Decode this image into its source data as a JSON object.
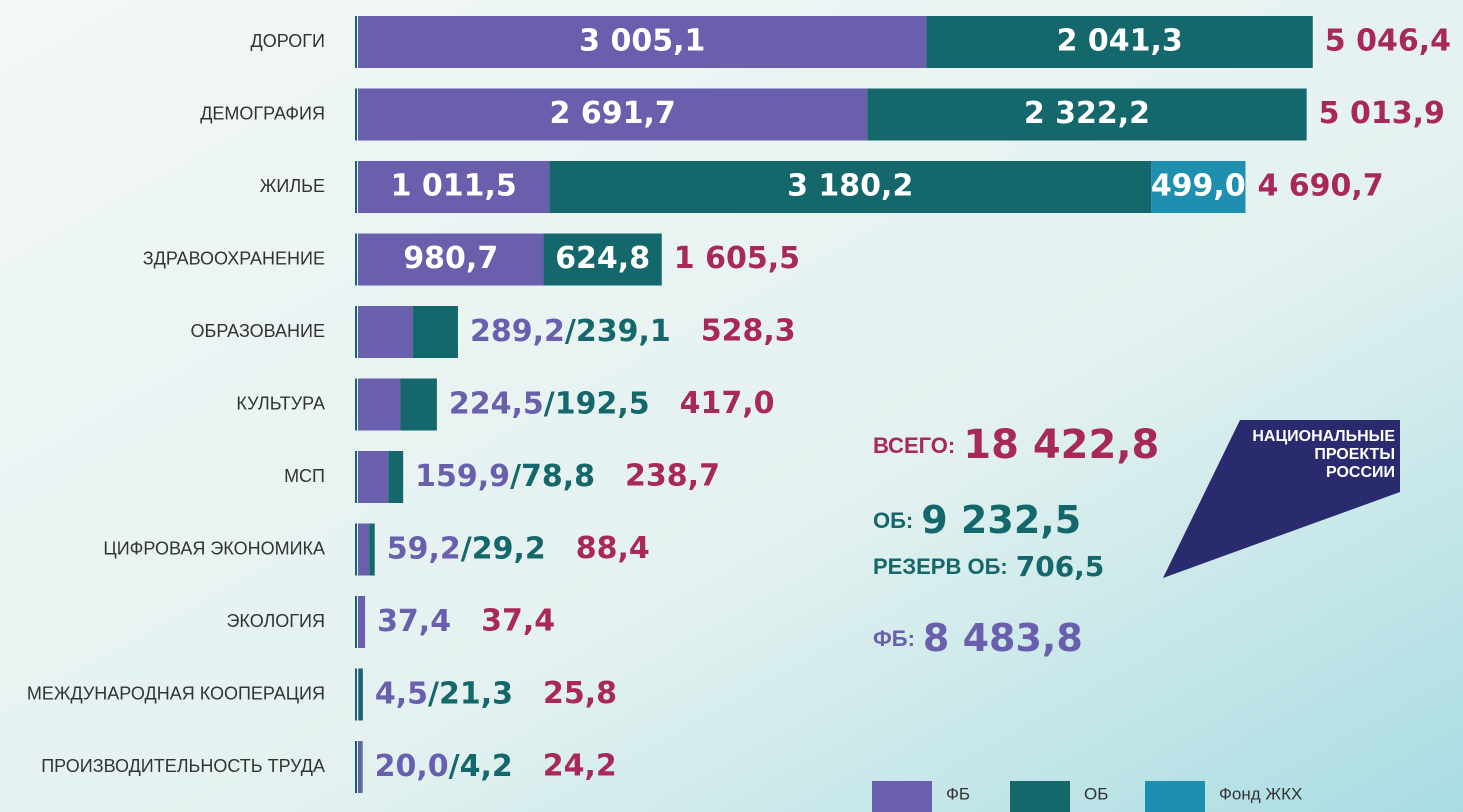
{
  "chart_data": {
    "type": "bar",
    "orientation": "horizontal",
    "stacked": true,
    "categories": [
      "ДОРОГИ",
      "ДЕМОГРАФИЯ",
      "ЖИЛЬЕ",
      "ЗДРАВООХРАНЕНИЕ",
      "ОБРАЗОВАНИЕ",
      "КУЛЬТУРА",
      "МСП",
      "ЦИФРОВАЯ ЭКОНОМИКА",
      "ЭКОЛОГИЯ",
      "МЕЖДУНАРОДНАЯ КООПЕРАЦИЯ",
      "ПРОИЗВОДИТЕЛЬНОСТЬ ТРУДА"
    ],
    "series": [
      {
        "name": "ФБ",
        "color": "#6a5fad",
        "values": [
          3005.1,
          2691.7,
          1011.5,
          980.7,
          289.2,
          224.5,
          159.9,
          59.2,
          37.4,
          4.5,
          20.0
        ],
        "value_labels": [
          "3 005,1",
          "2 691,7",
          "1 011,5",
          "980,7",
          "289,2",
          "224,5",
          "159,9",
          "59,2",
          "37,4",
          "4,5",
          "20,0"
        ]
      },
      {
        "name": "ОБ",
        "color": "#14676a",
        "values": [
          2041.3,
          2322.2,
          3180.2,
          624.8,
          239.1,
          192.5,
          78.8,
          29.2,
          null,
          21.3,
          4.2
        ],
        "value_labels": [
          "2 041,3",
          "2 322,2",
          "3 180,2",
          "624,8",
          "/239,1",
          "/192,5",
          "/78,8",
          "/29,2",
          null,
          "/21,3",
          "/4,2"
        ]
      },
      {
        "name": "Фонд ЖКХ",
        "color": "#1f8fb0",
        "values": [
          null,
          null,
          499.0,
          null,
          null,
          null,
          null,
          null,
          null,
          null,
          null
        ],
        "value_labels": [
          null,
          null,
          "499,0",
          null,
          null,
          null,
          null,
          null,
          null,
          null,
          null
        ]
      }
    ],
    "totals": {
      "color": "#a8285a",
      "values": [
        5046.4,
        5013.9,
        4690.7,
        1605.5,
        528.3,
        417.0,
        238.7,
        88.4,
        37.4,
        25.8,
        24.2
      ],
      "value_labels": [
        "5 046,4",
        "5 013,9",
        "4 690,7",
        "1 605,5",
        "528,3",
        "417,0",
        "238,7",
        "88,4",
        "37,4",
        "25,8",
        "24,2"
      ]
    },
    "summary": [
      {
        "label": "ВСЕГО:",
        "value": 18422.8,
        "value_label": "18 422,8",
        "color": "#a8285a"
      },
      {
        "label": "ОБ:",
        "value": 9232.5,
        "value_label": "9 232,5",
        "color": "#14676a"
      },
      {
        "label": "РЕЗЕРВ ОБ:",
        "value": 706.5,
        "value_label": "706,5",
        "color": "#14676a"
      },
      {
        "label": "ФБ:",
        "value": 8483.8,
        "value_label": "8 483,8",
        "color": "#6a5fad"
      }
    ],
    "logo": [
      "НАЦИОНАЛЬНЫЕ",
      "ПРОЕКТЫ",
      "РОССИИ"
    ]
  }
}
